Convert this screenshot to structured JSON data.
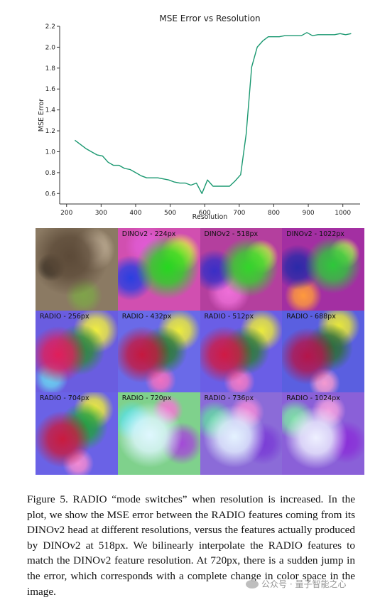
{
  "chart_data": {
    "type": "line",
    "title": "MSE Error vs Resolution",
    "xlabel": "Resolution",
    "ylabel": "MSE Error",
    "xlim": [
      180,
      1050
    ],
    "ylim": [
      0.5,
      2.2
    ],
    "xticks": [
      200,
      300,
      400,
      500,
      600,
      700,
      800,
      900,
      1000
    ],
    "yticks": [
      0.6,
      0.8,
      1.0,
      1.2,
      1.4,
      1.6,
      1.8,
      2.0,
      2.2
    ],
    "grid": false,
    "color": "#1a9870",
    "series": [
      {
        "x": [
          224,
          240,
          256,
          272,
          288,
          304,
          320,
          336,
          352,
          368,
          384,
          400,
          416,
          432,
          448,
          464,
          480,
          496,
          512,
          528,
          544,
          560,
          576,
          592,
          608,
          624,
          640,
          656,
          672,
          688,
          704,
          720,
          736,
          752,
          768,
          784,
          800,
          816,
          832,
          848,
          864,
          880,
          896,
          912,
          928,
          944,
          960,
          976,
          992,
          1008,
          1024
        ],
        "y": [
          1.11,
          1.07,
          1.03,
          1.0,
          0.97,
          0.96,
          0.9,
          0.87,
          0.87,
          0.84,
          0.83,
          0.8,
          0.77,
          0.75,
          0.75,
          0.75,
          0.74,
          0.73,
          0.71,
          0.7,
          0.7,
          0.68,
          0.7,
          0.6,
          0.73,
          0.67,
          0.67,
          0.67,
          0.67,
          0.72,
          0.78,
          1.17,
          1.81,
          2.0,
          2.06,
          2.1,
          2.1,
          2.1,
          2.11,
          2.11,
          2.11,
          2.11,
          2.14,
          2.11,
          2.12,
          2.12,
          2.12,
          2.12,
          2.13,
          2.12,
          2.13
        ]
      }
    ]
  },
  "tiles": [
    {
      "label": "",
      "bg": "#8b7a63",
      "blobs": [
        {
          "c": "#5c4a38",
          "x": 48,
          "y": 40,
          "r": 55
        },
        {
          "c": "#c9b89f",
          "x": 82,
          "y": 30,
          "r": 30
        },
        {
          "c": "#7fa34a",
          "x": 68,
          "y": 95,
          "r": 26
        },
        {
          "c": "#2f2a22",
          "x": 22,
          "y": 55,
          "r": 20
        }
      ]
    },
    {
      "label": "DINOv2 - 224px",
      "bg": "#d14fb0",
      "blobs": [
        {
          "c": "#26d81f",
          "x": 70,
          "y": 55,
          "r": 45
        },
        {
          "c": "#2a3fe0",
          "x": 18,
          "y": 70,
          "r": 32
        },
        {
          "c": "#f0ef4a",
          "x": 88,
          "y": 35,
          "r": 28
        },
        {
          "c": "#e05bd4",
          "x": 40,
          "y": 25,
          "r": 30
        }
      ]
    },
    {
      "label": "DINOv2 - 518px",
      "bg": "#b43f9e",
      "blobs": [
        {
          "c": "#33d62a",
          "x": 68,
          "y": 55,
          "r": 42
        },
        {
          "c": "#3a2fc6",
          "x": 20,
          "y": 60,
          "r": 30
        },
        {
          "c": "#e8e85a",
          "x": 86,
          "y": 40,
          "r": 24
        },
        {
          "c": "#ee6fd8",
          "x": 40,
          "y": 90,
          "r": 30
        }
      ]
    },
    {
      "label": "DINOv2 - 1022px",
      "bg": "#a32fa2",
      "blobs": [
        {
          "c": "#2ec83a",
          "x": 72,
          "y": 52,
          "r": 40
        },
        {
          "c": "#2a2aa8",
          "x": 22,
          "y": 55,
          "r": 32
        },
        {
          "c": "#ff9a3c",
          "x": 30,
          "y": 95,
          "r": 26
        },
        {
          "c": "#e2e26a",
          "x": 88,
          "y": 35,
          "r": 22
        }
      ]
    },
    {
      "label": "RADIO - 256px",
      "bg": "#6a5de0",
      "blobs": [
        {
          "c": "#e01e5a",
          "x": 32,
          "y": 62,
          "r": 40
        },
        {
          "c": "#2e8a3a",
          "x": 62,
          "y": 55,
          "r": 36
        },
        {
          "c": "#f0ee40",
          "x": 85,
          "y": 28,
          "r": 32
        },
        {
          "c": "#6ad0f0",
          "x": 22,
          "y": 95,
          "r": 24
        }
      ]
    },
    {
      "label": "RADIO - 432px",
      "bg": "#6a6ae8",
      "blobs": [
        {
          "c": "#c5183e",
          "x": 34,
          "y": 62,
          "r": 40
        },
        {
          "c": "#2c7c34",
          "x": 64,
          "y": 56,
          "r": 34
        },
        {
          "c": "#ecec3c",
          "x": 86,
          "y": 28,
          "r": 30
        },
        {
          "c": "#f070c0",
          "x": 60,
          "y": 98,
          "r": 22
        }
      ]
    },
    {
      "label": "RADIO - 512px",
      "bg": "#6a5ee6",
      "blobs": [
        {
          "c": "#d01a44",
          "x": 34,
          "y": 62,
          "r": 40
        },
        {
          "c": "#2e7c36",
          "x": 64,
          "y": 56,
          "r": 34
        },
        {
          "c": "#eaea3c",
          "x": 86,
          "y": 28,
          "r": 30
        },
        {
          "c": "#f07ac6",
          "x": 55,
          "y": 100,
          "r": 22
        }
      ]
    },
    {
      "label": "RADIO - 688px",
      "bg": "#5a5fe0",
      "blobs": [
        {
          "c": "#b4154a",
          "x": 36,
          "y": 64,
          "r": 40
        },
        {
          "c": "#2c6e34",
          "x": 66,
          "y": 52,
          "r": 34
        },
        {
          "c": "#e8e83a",
          "x": 80,
          "y": 22,
          "r": 30
        },
        {
          "c": "#f59ad0",
          "x": 60,
          "y": 102,
          "r": 22
        }
      ]
    },
    {
      "label": "RADIO - 704px",
      "bg": "#6a62e6",
      "blobs": [
        {
          "c": "#c91b3e",
          "x": 38,
          "y": 66,
          "r": 40
        },
        {
          "c": "#22a040",
          "x": 68,
          "y": 48,
          "r": 34
        },
        {
          "c": "#ecec3c",
          "x": 82,
          "y": 24,
          "r": 28
        },
        {
          "c": "#f28ad2",
          "x": 60,
          "y": 100,
          "r": 22
        }
      ]
    },
    {
      "label": "RADIO - 720px",
      "bg": "#7fd18c",
      "blobs": [
        {
          "c": "#dff7ff",
          "x": 45,
          "y": 60,
          "r": 46
        },
        {
          "c": "#5adfe0",
          "x": 20,
          "y": 40,
          "r": 28
        },
        {
          "c": "#a44ad8",
          "x": 90,
          "y": 72,
          "r": 30
        },
        {
          "c": "#f07bd0",
          "x": 70,
          "y": 25,
          "r": 22
        }
      ]
    },
    {
      "label": "RADIO - 736px",
      "bg": "#8b6bd8",
      "blobs": [
        {
          "c": "#e4f2ff",
          "x": 48,
          "y": 62,
          "r": 44
        },
        {
          "c": "#66d7a6",
          "x": 20,
          "y": 40,
          "r": 28
        },
        {
          "c": "#7a3dd6",
          "x": 88,
          "y": 72,
          "r": 30
        },
        {
          "c": "#f08ad8",
          "x": 66,
          "y": 28,
          "r": 24
        }
      ]
    },
    {
      "label": "RADIO - 1024px",
      "bg": "#8a60d8",
      "blobs": [
        {
          "c": "#eef0ff",
          "x": 48,
          "y": 64,
          "r": 44
        },
        {
          "c": "#7fe0a8",
          "x": 18,
          "y": 38,
          "r": 28
        },
        {
          "c": "#8a30d8",
          "x": 90,
          "y": 70,
          "r": 30
        },
        {
          "c": "#f2a0e0",
          "x": 66,
          "y": 26,
          "r": 24
        }
      ]
    }
  ],
  "caption": "Figure 5. RADIO “mode switches” when resolution is increased. In the plot, we show the MSE error between the RADIO features coming from its DINOv2 head at different resolutions, versus the features actually produced by DINOv2 at 518px. We bilinearly interpolate the RADIO features to match the DINOv2 feature resolution. At 720px, there is a sudden jump in the error, which corresponds with a complete change in color space in the image.",
  "watermark": "公众号 · 量子智能之心"
}
